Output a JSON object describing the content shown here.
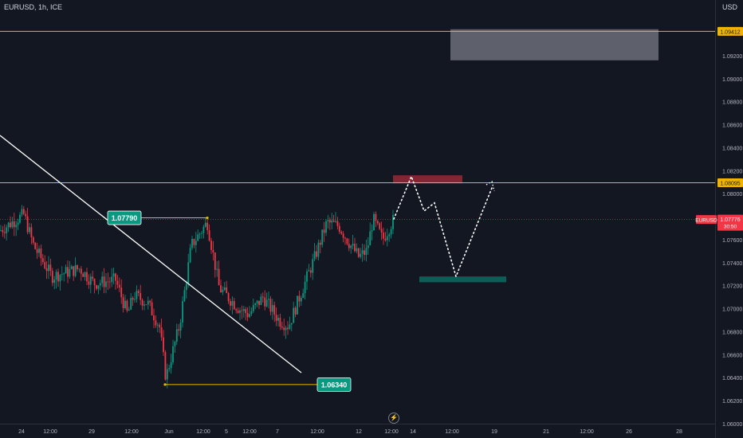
{
  "header": {
    "symbol": "EURUSD, 1h, ICE",
    "currency": "USD"
  },
  "chart_data": {
    "type": "candlestick",
    "ylim": [
      1.06,
      1.0965
    ],
    "y_ticks": [
      "1.09200",
      "1.09000",
      "1.08800",
      "1.08600",
      "1.08400",
      "1.08200",
      "1.08000",
      "1.07800",
      "1.07600",
      "1.07400",
      "1.07200",
      "1.07000",
      "1.06800",
      "1.06600",
      "1.06400",
      "1.06200",
      "1.06000"
    ],
    "x_ticks": [
      "24",
      "12:00",
      "29",
      "12:00",
      "Jun",
      "12:00",
      "5",
      "12:00",
      "7",
      "12:00",
      "12",
      "12:00",
      "14",
      "12:00",
      "19",
      "21",
      "12:00",
      "26",
      "28"
    ],
    "levels": [
      {
        "value": 1.09412,
        "label": "1.09412",
        "color": "#f0b400"
      },
      {
        "value": 1.08095,
        "label": "1.08095",
        "color": "#f0b400"
      }
    ],
    "current_price": {
      "value": 1.07776,
      "label": "1.07776",
      "countdown": "30:50",
      "symbol": "EURUSD",
      "color": "#f23645"
    },
    "annotations": [
      {
        "label": "1.07790",
        "value": 1.0779
      },
      {
        "label": "1.06340",
        "value": 1.0634
      }
    ],
    "zones": [
      {
        "name": "supply-gray",
        "y_range": [
          1.0916,
          1.0943
        ],
        "color": "#787b86"
      },
      {
        "name": "target-red",
        "y_range": [
          1.0809,
          1.0816
        ],
        "color": "#f23645"
      },
      {
        "name": "target-green",
        "y_range": [
          1.0723,
          1.0728
        ],
        "color": "#089981"
      }
    ],
    "projection_path": [
      1.0778,
      1.0815,
      1.0785,
      1.0792,
      1.0728,
      1.0805
    ],
    "colors": {
      "up": "#089981",
      "down": "#f23645",
      "background": "#131722"
    }
  }
}
